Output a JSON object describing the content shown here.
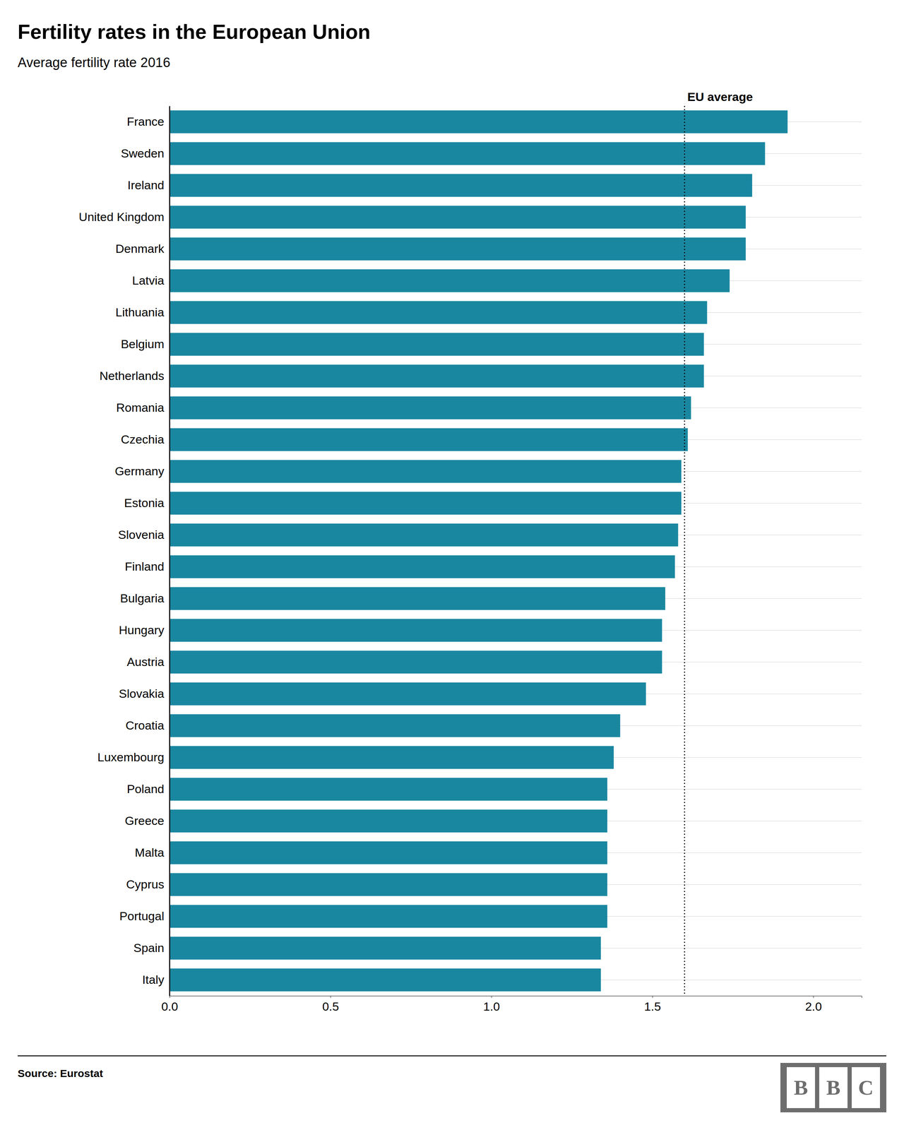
{
  "chart_data": {
    "type": "bar",
    "orientation": "horizontal",
    "title": "Fertility rates in the European Union",
    "subtitle": "Average fertility rate 2016",
    "source": "Source: Eurostat",
    "logo": [
      "B",
      "B",
      "C"
    ],
    "annotations": [
      {
        "text": "EU average",
        "x": 1.6
      }
    ],
    "color": "#1a87a0",
    "grid": true,
    "categories": [
      "France",
      "Sweden",
      "Ireland",
      "United Kingdom",
      "Denmark",
      "Latvia",
      "Lithuania",
      "Belgium",
      "Netherlands",
      "Romania",
      "Czechia",
      "Germany",
      "Estonia",
      "Slovenia",
      "Finland",
      "Bulgaria",
      "Hungary",
      "Austria",
      "Slovakia",
      "Croatia",
      "Luxembourg",
      "Poland",
      "Greece",
      "Malta",
      "Cyprus",
      "Portugal",
      "Spain",
      "Italy"
    ],
    "values": [
      1.92,
      1.85,
      1.81,
      1.79,
      1.79,
      1.74,
      1.67,
      1.66,
      1.66,
      1.62,
      1.61,
      1.59,
      1.59,
      1.58,
      1.57,
      1.54,
      1.53,
      1.53,
      1.48,
      1.4,
      1.38,
      1.36,
      1.36,
      1.36,
      1.36,
      1.36,
      1.34,
      1.34
    ],
    "xlim": [
      0,
      2.15
    ],
    "xticks": [
      {
        "value": 0,
        "label": "0.0"
      },
      0.5,
      {
        "value": 1,
        "label": "1.0"
      },
      1.5,
      {
        "value": 2,
        "label": "2.0"
      }
    ]
  }
}
